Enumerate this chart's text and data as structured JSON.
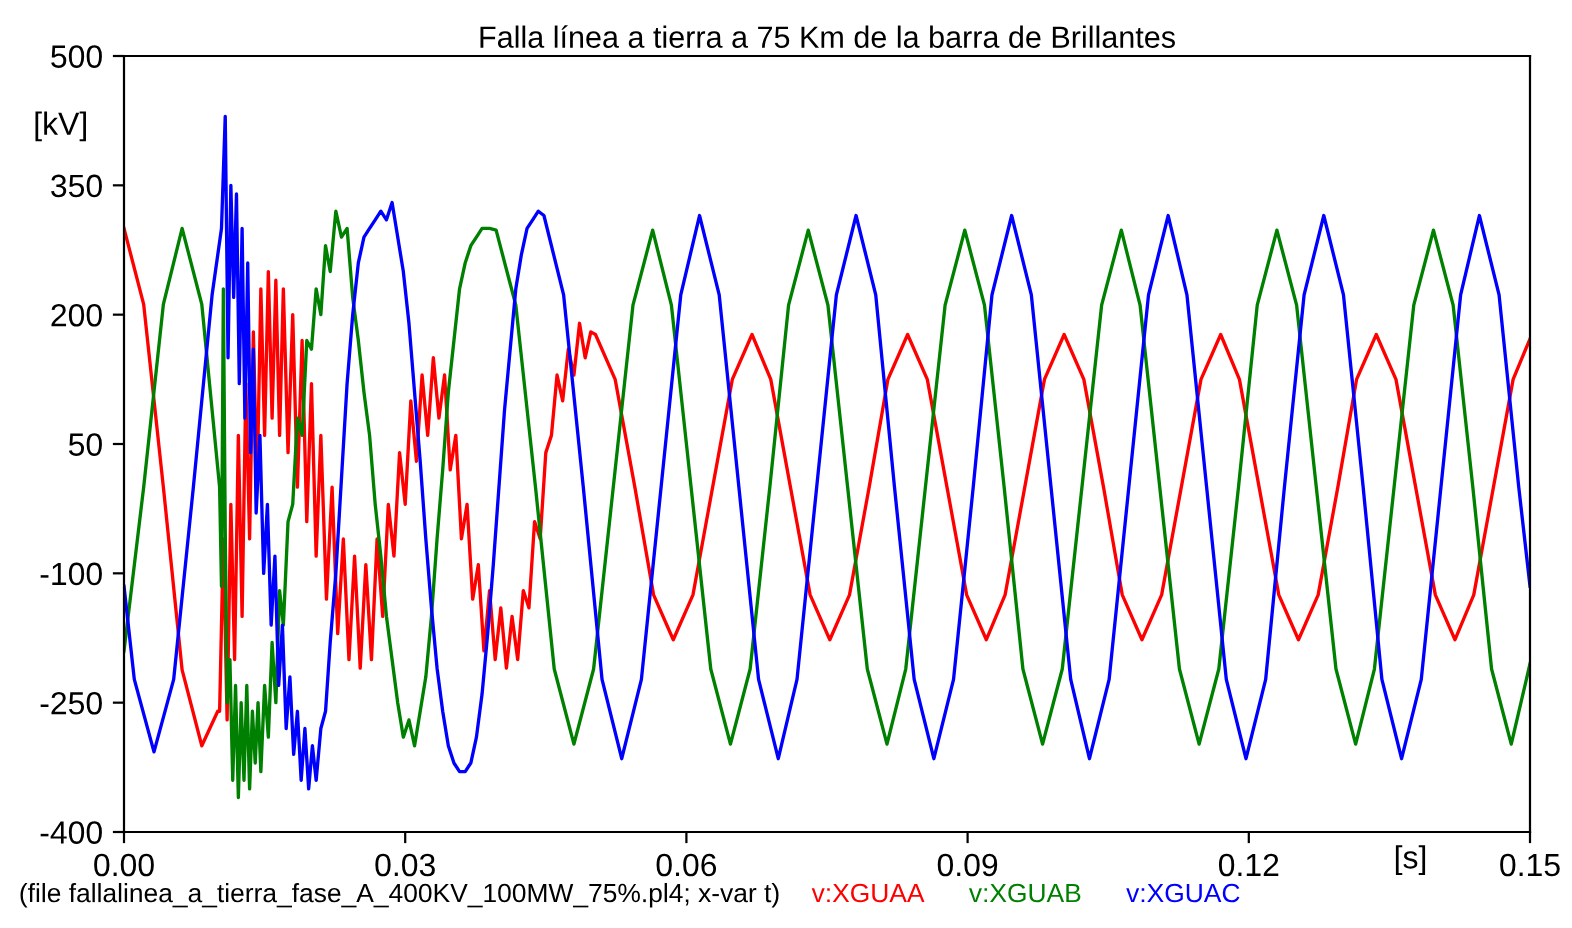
{
  "chart_data": {
    "type": "line",
    "title": "Falla línea a tierra a 75 Km de la barra de Brillantes",
    "xlabel": "[s]",
    "ylabel": "[kV]",
    "annotations": [
      "(file fallalinea_a_tierra_fase_A_400KV_100MW_75%.pl4; x-var t)"
    ],
    "xlim": [
      0,
      0.15
    ],
    "ylim": [
      -400,
      500
    ],
    "xticks": [
      {
        "value": 0,
        "label": "0.00"
      },
      {
        "value": 0.03,
        "label": "0.03"
      },
      {
        "value": 0.06,
        "label": "0.06"
      },
      {
        "value": 0.09,
        "label": "0.09"
      },
      {
        "value": 0.12,
        "label": "0.12"
      },
      {
        "value": 0.15,
        "label": "0.15"
      }
    ],
    "yticks": [
      -400,
      -250,
      -100,
      50,
      200,
      350,
      500
    ],
    "grid": false,
    "legend": "bottom",
    "marker": "none",
    "line_style": "solid",
    "series": [
      {
        "name": "v:XGUAA",
        "color": "#ff0000",
        "x": [
          0,
          0.0021,
          0.0042,
          0.0062,
          0.0083,
          0.01,
          0.0102,
          0.0106,
          0.011,
          0.0114,
          0.0118,
          0.0122,
          0.0126,
          0.013,
          0.0134,
          0.0138,
          0.0142,
          0.0146,
          0.015,
          0.0154,
          0.0158,
          0.0162,
          0.0166,
          0.017,
          0.0175,
          0.018,
          0.0185,
          0.019,
          0.0195,
          0.02,
          0.0205,
          0.021,
          0.0216,
          0.0222,
          0.0228,
          0.0234,
          0.024,
          0.0246,
          0.0252,
          0.0258,
          0.0264,
          0.027,
          0.0276,
          0.0282,
          0.0288,
          0.0294,
          0.03,
          0.0306,
          0.0312,
          0.0318,
          0.0324,
          0.033,
          0.0336,
          0.0342,
          0.0348,
          0.0354,
          0.036,
          0.0366,
          0.0372,
          0.0378,
          0.0384,
          0.039,
          0.0396,
          0.0402,
          0.0408,
          0.0414,
          0.042,
          0.0426,
          0.0432,
          0.0438,
          0.0444,
          0.045,
          0.0456,
          0.0462,
          0.0468,
          0.0474,
          0.048,
          0.0486,
          0.0492,
          0.0498,
          0.0503,
          0.0524,
          0.0545,
          0.0565,
          0.0586,
          0.0607,
          0.0628,
          0.0649,
          0.067,
          0.069,
          0.0711,
          0.0732,
          0.0753,
          0.0774,
          0.0795,
          0.0815,
          0.0836,
          0.0857,
          0.0878,
          0.0899,
          0.092,
          0.094,
          0.0961,
          0.0982,
          0.1003,
          0.1024,
          0.1045,
          0.1065,
          0.1086,
          0.1107,
          0.1128,
          0.1149,
          0.117,
          0.119,
          0.1211,
          0.1232,
          0.1253,
          0.1274,
          0.1295,
          0.1315,
          0.1336,
          0.1357,
          0.1378,
          0.1399,
          0.142,
          0.144,
          0.1461,
          0.1482,
          0.15
        ],
        "values": [
          300,
          212,
          0,
          -212,
          -300,
          -260,
          -260,
          -60,
          -270,
          -20,
          -200,
          60,
          -150,
          120,
          -60,
          180,
          0,
          230,
          60,
          250,
          80,
          240,
          60,
          230,
          40,
          200,
          0,
          170,
          -40,
          120,
          -80,
          60,
          -130,
          0,
          -170,
          -60,
          -200,
          -80,
          -210,
          -90,
          -200,
          -60,
          -150,
          -20,
          -80,
          40,
          -20,
          100,
          30,
          130,
          60,
          150,
          80,
          130,
          20,
          60,
          -60,
          -20,
          -130,
          -90,
          -190,
          -120,
          -200,
          -140,
          -210,
          -150,
          -200,
          -120,
          -140,
          -40,
          -60,
          40,
          60,
          130,
          100,
          160,
          130,
          190,
          150,
          180,
          177,
          125,
          0,
          -125,
          -177,
          -125,
          0,
          125,
          177,
          125,
          0,
          -125,
          -177,
          -125,
          0,
          125,
          177,
          125,
          0,
          -125,
          -177,
          -125,
          0,
          125,
          177,
          125,
          0,
          -125,
          -177,
          -125,
          0,
          125,
          177,
          125,
          0,
          -125,
          -177,
          -125,
          0,
          125,
          177,
          125,
          0,
          -125,
          -177,
          -125,
          0,
          125,
          172
        ]
      },
      {
        "name": "v:XGUAB",
        "color": "#008000",
        "x": [
          0,
          0.0021,
          0.0042,
          0.0062,
          0.0083,
          0.0102,
          0.0104,
          0.0106,
          0.0108,
          0.011,
          0.0113,
          0.0116,
          0.0119,
          0.0122,
          0.0125,
          0.0128,
          0.0131,
          0.0134,
          0.0137,
          0.014,
          0.0143,
          0.0146,
          0.015,
          0.0154,
          0.0158,
          0.0162,
          0.0166,
          0.017,
          0.0175,
          0.018,
          0.0185,
          0.019,
          0.0195,
          0.02,
          0.0205,
          0.021,
          0.0215,
          0.022,
          0.0226,
          0.0232,
          0.0238,
          0.0244,
          0.025,
          0.0256,
          0.0262,
          0.0268,
          0.0274,
          0.028,
          0.0286,
          0.0292,
          0.0298,
          0.0304,
          0.031,
          0.0316,
          0.0322,
          0.0328,
          0.0334,
          0.034,
          0.0346,
          0.0352,
          0.0358,
          0.0364,
          0.037,
          0.0376,
          0.0382,
          0.039,
          0.0397,
          0.0418,
          0.0439,
          0.0459,
          0.048,
          0.0501,
          0.0522,
          0.0543,
          0.0564,
          0.0584,
          0.0605,
          0.0626,
          0.0647,
          0.0668,
          0.0689,
          0.0709,
          0.073,
          0.0751,
          0.0772,
          0.0793,
          0.0814,
          0.0834,
          0.0855,
          0.0876,
          0.0897,
          0.0918,
          0.0939,
          0.0959,
          0.098,
          0.1001,
          0.1022,
          0.1043,
          0.1064,
          0.1084,
          0.1105,
          0.1126,
          0.1147,
          0.1168,
          0.1189,
          0.1209,
          0.123,
          0.1251,
          0.1272,
          0.1293,
          0.1314,
          0.1334,
          0.1355,
          0.1376,
          0.1397,
          0.1418,
          0.1439,
          0.1459,
          0.148,
          0.15
        ],
        "values": [
          -190,
          0,
          212,
          300,
          212,
          0,
          -115,
          230,
          -50,
          -250,
          -200,
          -340,
          -230,
          -360,
          -250,
          -340,
          -230,
          -350,
          -260,
          -320,
          -250,
          -330,
          -230,
          -290,
          -180,
          -250,
          -120,
          -160,
          -40,
          -20,
          80,
          60,
          170,
          160,
          230,
          200,
          280,
          250,
          320,
          290,
          300,
          220,
          170,
          110,
          60,
          -20,
          -80,
          -150,
          -200,
          -250,
          -290,
          -270,
          -300,
          -260,
          -220,
          -150,
          -60,
          20,
          110,
          170,
          230,
          260,
          280,
          290,
          300,
          300,
          298,
          211,
          0,
          -211,
          -298,
          -211,
          0,
          211,
          298,
          211,
          0,
          -211,
          -298,
          -211,
          0,
          211,
          298,
          211,
          0,
          -211,
          -298,
          -211,
          0,
          211,
          298,
          211,
          0,
          -211,
          -298,
          -211,
          0,
          211,
          298,
          211,
          0,
          -211,
          -298,
          -211,
          0,
          211,
          298,
          211,
          0,
          -211,
          -298,
          -211,
          0,
          211,
          298,
          211,
          0,
          -211,
          -298,
          -205
        ]
      },
      {
        "name": "v:XGUAC",
        "color": "#0000ff",
        "x": [
          0,
          0.0011,
          0.0032,
          0.0053,
          0.0074,
          0.0094,
          0.0104,
          0.0108,
          0.0111,
          0.0114,
          0.0117,
          0.012,
          0.0123,
          0.0126,
          0.0129,
          0.0132,
          0.0135,
          0.0138,
          0.0141,
          0.0145,
          0.0149,
          0.0153,
          0.0157,
          0.0161,
          0.0165,
          0.0169,
          0.0173,
          0.0177,
          0.0181,
          0.0185,
          0.0189,
          0.0193,
          0.0197,
          0.0201,
          0.0205,
          0.021,
          0.0215,
          0.022,
          0.0226,
          0.0232,
          0.0238,
          0.0244,
          0.025,
          0.0256,
          0.0262,
          0.0268,
          0.0274,
          0.028,
          0.0286,
          0.0292,
          0.0298,
          0.0304,
          0.031,
          0.0316,
          0.0322,
          0.0328,
          0.0334,
          0.034,
          0.0346,
          0.0352,
          0.0358,
          0.0364,
          0.037,
          0.0376,
          0.0382,
          0.0388,
          0.0394,
          0.04,
          0.0406,
          0.0412,
          0.0418,
          0.0424,
          0.043,
          0.0436,
          0.0442,
          0.0448,
          0.0469,
          0.049,
          0.051,
          0.0531,
          0.0552,
          0.0573,
          0.0594,
          0.0614,
          0.0635,
          0.0656,
          0.0677,
          0.0698,
          0.0718,
          0.0739,
          0.076,
          0.0781,
          0.0802,
          0.0822,
          0.0843,
          0.0864,
          0.0885,
          0.0906,
          0.0926,
          0.0947,
          0.0968,
          0.0989,
          0.101,
          0.103,
          0.1051,
          0.1072,
          0.1093,
          0.1114,
          0.1134,
          0.1155,
          0.1176,
          0.1197,
          0.1218,
          0.1238,
          0.1259,
          0.128,
          0.1301,
          0.1322,
          0.1342,
          0.1363,
          0.1384,
          0.1405,
          0.1426,
          0.1446,
          0.1467,
          0.1488,
          0.15
        ],
        "values": [
          -115,
          -223,
          -307,
          -223,
          0,
          223,
          300,
          430,
          150,
          350,
          220,
          340,
          120,
          300,
          80,
          260,
          40,
          160,
          -30,
          60,
          -100,
          -20,
          -160,
          -80,
          -230,
          -160,
          -280,
          -220,
          -310,
          -260,
          -340,
          -280,
          -350,
          -300,
          -340,
          -280,
          -260,
          -180,
          -100,
          10,
          120,
          200,
          260,
          290,
          300,
          310,
          320,
          310,
          330,
          290,
          250,
          190,
          110,
          30,
          -60,
          -140,
          -210,
          -260,
          -300,
          -320,
          -330,
          -330,
          -320,
          -290,
          -240,
          -170,
          -90,
          0,
          90,
          160,
          230,
          270,
          300,
          310,
          320,
          315,
          223,
          0,
          -223,
          -315,
          -223,
          0,
          223,
          315,
          223,
          0,
          -223,
          -315,
          -223,
          0,
          223,
          315,
          223,
          0,
          -223,
          -315,
          -223,
          0,
          223,
          315,
          223,
          0,
          -223,
          -315,
          -223,
          0,
          223,
          315,
          223,
          0,
          -223,
          -315,
          -223,
          0,
          223,
          315,
          223,
          0,
          -223,
          -315,
          -223,
          0,
          223,
          315,
          223,
          0,
          -115
        ]
      }
    ]
  }
}
